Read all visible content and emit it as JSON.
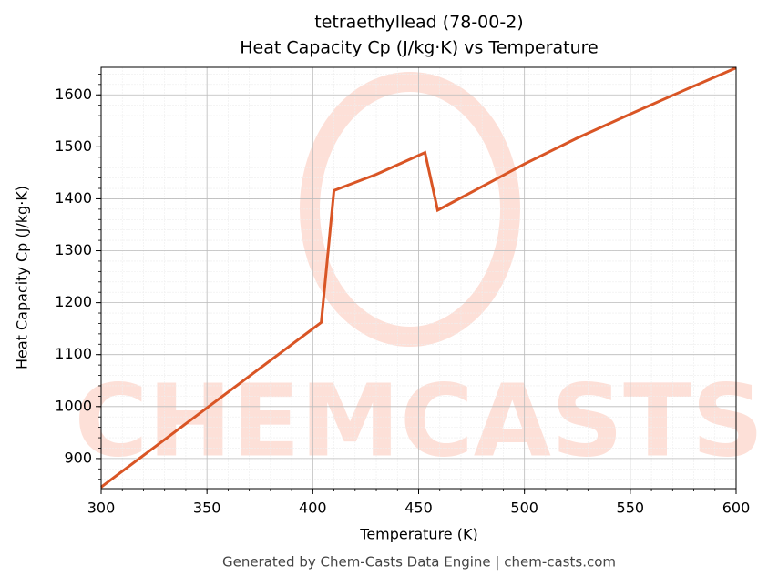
{
  "chart_data": {
    "type": "line",
    "title": "tetraethyllead (78-00-2)",
    "subtitle": "Heat Capacity Cp (J/kg·K) vs Temperature",
    "x_label": "Temperature (K)",
    "y_label": "Heat Capacity Cp (J/kg·K)",
    "footer": "Generated by Chem-Casts Data Engine | chem-casts.com",
    "watermark": "CHEMCASTS",
    "x": [
      300,
      404,
      410,
      430,
      453,
      459,
      500,
      525,
      550,
      575,
      600
    ],
    "series": [
      {
        "name": "Cp",
        "color": "#d95525",
        "values": [
          845,
          1162,
          1416,
          1447,
          1489,
          1378,
          1467,
          1517,
          1563,
          1608,
          1652
        ]
      }
    ],
    "xlim": [
      300,
      600
    ],
    "xticks": [
      300,
      350,
      400,
      450,
      500,
      550,
      600
    ],
    "ylim": [
      842,
      1653
    ],
    "yticks": [
      900,
      1000,
      1100,
      1200,
      1300,
      1400,
      1500,
      1600
    ],
    "grid": true,
    "minor_grid": true
  }
}
